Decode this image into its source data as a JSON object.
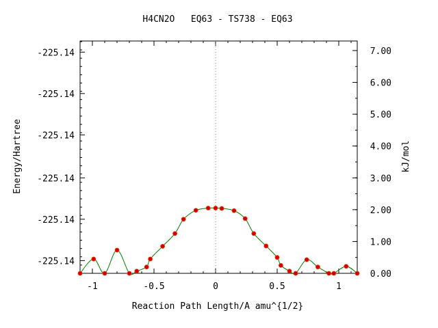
{
  "chart_data": {
    "type": "line",
    "title": "H4CN2O   EQ63 - TS738 - EQ63",
    "xlabel": "Reaction Path Length/A amu^{1/2}",
    "ylabel": "Energy/Hartree",
    "y2label": "kJ/mol",
    "xlim": [
      -1.1,
      1.15
    ],
    "y2lim": [
      0.0,
      7.3
    ],
    "x_ticks": [
      -1,
      -0.5,
      0,
      0.5,
      1
    ],
    "x_tick_labels": [
      "-1",
      "-0.5",
      "0",
      "0.5",
      "1"
    ],
    "y_left_ticks": [
      0.4,
      1.7,
      3.0,
      4.35,
      5.65,
      6.95
    ],
    "y_left_tick_labels": [
      "-225.14",
      "-225.14",
      "-225.14",
      "-225.14",
      "-225.14",
      "-225.14"
    ],
    "y_right_ticks": [
      0,
      1,
      2,
      3,
      4,
      5,
      6,
      7
    ],
    "y_right_tick_labels": [
      "0.00",
      "1.00",
      "2.00",
      "3.00",
      "4.00",
      "5.00",
      "6.00",
      "7.00"
    ],
    "reference_line_x": 0,
    "grid": false,
    "series": [
      {
        "x": [
          -1.1,
          -0.99,
          -0.9,
          -0.8,
          -0.7,
          -0.64,
          -0.56,
          -0.53,
          -0.43,
          -0.33,
          -0.26,
          -0.16,
          -0.06,
          0.0,
          0.05,
          0.15,
          0.24,
          0.31,
          0.41,
          0.5,
          0.53,
          0.6,
          0.65,
          0.74,
          0.83,
          0.92,
          0.96,
          1.06,
          1.16
        ],
        "y": [
          0.0,
          0.45,
          0.0,
          0.73,
          0.0,
          0.07,
          0.2,
          0.45,
          0.85,
          1.25,
          1.7,
          1.98,
          2.05,
          2.05,
          2.04,
          1.97,
          1.72,
          1.25,
          0.86,
          0.5,
          0.25,
          0.07,
          0.0,
          0.43,
          0.2,
          0.0,
          0.0,
          0.22,
          0.0
        ],
        "line_color": "#008000",
        "marker_color": "#cc0000"
      }
    ]
  }
}
